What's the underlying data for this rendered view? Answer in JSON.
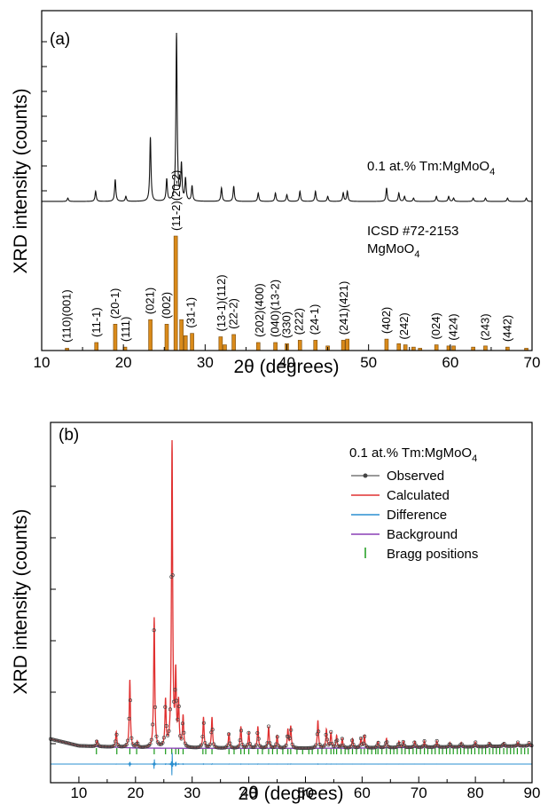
{
  "chart_data": [
    {
      "type": "bar",
      "panel": "(a)",
      "xlabel": "2θ (degrees)",
      "ylabel": "XRD intensity (counts)",
      "xlim": [
        10,
        70
      ],
      "x_ticks": [
        10,
        20,
        30,
        40,
        50,
        60,
        70
      ],
      "grid": false,
      "sample_label": "0.1 at.% Tm:MgMoO",
      "sample_label_sub": "4",
      "reference_label_line1": "ICSD #72-2153",
      "reference_label_line2": "MgMoO",
      "reference_label_sub": "4",
      "observed_peaks": [
        {
          "x": 13.2,
          "y": 2
        },
        {
          "x": 16.6,
          "y": 6
        },
        {
          "x": 19.0,
          "y": 13
        },
        {
          "x": 20.3,
          "y": 3
        },
        {
          "x": 23.3,
          "y": 38
        },
        {
          "x": 25.3,
          "y": 13
        },
        {
          "x": 26.5,
          "y": 100
        },
        {
          "x": 27.1,
          "y": 21
        },
        {
          "x": 27.6,
          "y": 13
        },
        {
          "x": 28.4,
          "y": 9
        },
        {
          "x": 32.0,
          "y": 8
        },
        {
          "x": 33.5,
          "y": 9
        },
        {
          "x": 36.5,
          "y": 5
        },
        {
          "x": 38.6,
          "y": 5
        },
        {
          "x": 40.0,
          "y": 4
        },
        {
          "x": 41.6,
          "y": 6
        },
        {
          "x": 43.5,
          "y": 6
        },
        {
          "x": 45.0,
          "y": 3
        },
        {
          "x": 46.9,
          "y": 5
        },
        {
          "x": 47.4,
          "y": 6
        },
        {
          "x": 52.2,
          "y": 8
        },
        {
          "x": 53.7,
          "y": 5
        },
        {
          "x": 54.4,
          "y": 3
        },
        {
          "x": 55.5,
          "y": 2
        },
        {
          "x": 58.3,
          "y": 3
        },
        {
          "x": 59.8,
          "y": 3
        },
        {
          "x": 60.4,
          "y": 2
        },
        {
          "x": 62.8,
          "y": 2
        },
        {
          "x": 64.3,
          "y": 2
        },
        {
          "x": 67.0,
          "y": 2
        },
        {
          "x": 69.3,
          "y": 2
        }
      ],
      "reference_bars": [
        {
          "x": 13.1,
          "y": 2
        },
        {
          "x": 16.7,
          "y": 7
        },
        {
          "x": 19.0,
          "y": 23
        },
        {
          "x": 20.2,
          "y": 3
        },
        {
          "x": 23.3,
          "y": 27
        },
        {
          "x": 25.3,
          "y": 23
        },
        {
          "x": 26.4,
          "y": 100
        },
        {
          "x": 27.1,
          "y": 27
        },
        {
          "x": 27.6,
          "y": 13
        },
        {
          "x": 28.4,
          "y": 15
        },
        {
          "x": 31.9,
          "y": 12
        },
        {
          "x": 32.4,
          "y": 5
        },
        {
          "x": 33.5,
          "y": 14
        },
        {
          "x": 36.5,
          "y": 7
        },
        {
          "x": 38.6,
          "y": 7
        },
        {
          "x": 40.0,
          "y": 6
        },
        {
          "x": 41.6,
          "y": 9
        },
        {
          "x": 43.5,
          "y": 9
        },
        {
          "x": 45.0,
          "y": 4
        },
        {
          "x": 46.9,
          "y": 9
        },
        {
          "x": 47.4,
          "y": 10
        },
        {
          "x": 52.2,
          "y": 10
        },
        {
          "x": 53.7,
          "y": 6
        },
        {
          "x": 54.5,
          "y": 5
        },
        {
          "x": 55.5,
          "y": 3
        },
        {
          "x": 56.3,
          "y": 2
        },
        {
          "x": 58.3,
          "y": 5
        },
        {
          "x": 59.8,
          "y": 4
        },
        {
          "x": 60.4,
          "y": 4
        },
        {
          "x": 62.8,
          "y": 3
        },
        {
          "x": 64.3,
          "y": 4
        },
        {
          "x": 67.0,
          "y": 3
        },
        {
          "x": 69.3,
          "y": 2
        }
      ],
      "hkl_labels": [
        {
          "x": 13.1,
          "text": "(110)(001)"
        },
        {
          "x": 16.7,
          "text": "(11-1)"
        },
        {
          "x": 19.0,
          "text": "(20-1)"
        },
        {
          "x": 20.3,
          "text": "(111)"
        },
        {
          "x": 23.3,
          "text": "(021)"
        },
        {
          "x": 25.3,
          "text": "(002)"
        },
        {
          "x": 26.5,
          "text": "(11-2)(20-2)"
        },
        {
          "x": 28.3,
          "text": "(31-1)"
        },
        {
          "x": 32.0,
          "text": "(13-1)(112)"
        },
        {
          "x": 33.5,
          "text": "(22-2)"
        },
        {
          "x": 36.7,
          "text": "(202)(400)"
        },
        {
          "x": 38.6,
          "text": "(040)(13-2)"
        },
        {
          "x": 40.0,
          "text": "(330)"
        },
        {
          "x": 41.5,
          "text": "(222)"
        },
        {
          "x": 43.4,
          "text": "(24-1)"
        },
        {
          "x": 47.0,
          "text": "(241)(421)"
        },
        {
          "x": 52.2,
          "text": "(402)"
        },
        {
          "x": 54.4,
          "text": "(242)"
        },
        {
          "x": 58.3,
          "text": "(024)"
        },
        {
          "x": 60.4,
          "text": "(424)"
        },
        {
          "x": 64.3,
          "text": "(243)"
        },
        {
          "x": 67.0,
          "text": "(442)"
        }
      ]
    },
    {
      "type": "line",
      "panel": "(b)",
      "xlabel": "2θ (degrees)",
      "ylabel": "XRD intensity (counts)",
      "xlim": [
        5,
        90
      ],
      "x_ticks": [
        10,
        20,
        30,
        40,
        50,
        60,
        70,
        80,
        90
      ],
      "grid": false,
      "legend_placement": "top-right",
      "legend_title": "0.1 at.% Tm:MgMoO",
      "legend_title_sub": "4",
      "series": [
        {
          "name": "Observed",
          "color": "#333333",
          "marker": "circle"
        },
        {
          "name": "Calculated",
          "color": "#e03030"
        },
        {
          "name": "Difference",
          "color": "#2a8fd0"
        },
        {
          "name": "Background",
          "color": "#8a3fb5"
        },
        {
          "name": "Bragg positions",
          "color": "#1a9a1a",
          "marker": "tick"
        }
      ],
      "background_points": [
        {
          "x": 5,
          "y": 5.5
        },
        {
          "x": 10,
          "y": 3.3
        },
        {
          "x": 20,
          "y": 2.6
        },
        {
          "x": 30,
          "y": 2.5
        },
        {
          "x": 40,
          "y": 2.5
        },
        {
          "x": 50,
          "y": 2.5
        },
        {
          "x": 60,
          "y": 2.6
        },
        {
          "x": 70,
          "y": 2.8
        },
        {
          "x": 80,
          "y": 3.0
        },
        {
          "x": 90,
          "y": 3.3
        }
      ],
      "peaks": [
        {
          "x": 13.2,
          "y": 2
        },
        {
          "x": 16.6,
          "y": 5
        },
        {
          "x": 19.0,
          "y": 22
        },
        {
          "x": 20.3,
          "y": 2
        },
        {
          "x": 23.3,
          "y": 42
        },
        {
          "x": 25.3,
          "y": 15
        },
        {
          "x": 26.45,
          "y": 100
        },
        {
          "x": 27.1,
          "y": 23
        },
        {
          "x": 27.6,
          "y": 14
        },
        {
          "x": 28.4,
          "y": 10
        },
        {
          "x": 32.0,
          "y": 10
        },
        {
          "x": 33.5,
          "y": 10
        },
        {
          "x": 36.5,
          "y": 5
        },
        {
          "x": 38.6,
          "y": 7
        },
        {
          "x": 40.0,
          "y": 5
        },
        {
          "x": 41.6,
          "y": 7
        },
        {
          "x": 43.5,
          "y": 7
        },
        {
          "x": 45.0,
          "y": 4
        },
        {
          "x": 46.9,
          "y": 6
        },
        {
          "x": 47.4,
          "y": 7
        },
        {
          "x": 52.2,
          "y": 9
        },
        {
          "x": 53.7,
          "y": 6
        },
        {
          "x": 54.5,
          "y": 5
        },
        {
          "x": 55.5,
          "y": 4
        },
        {
          "x": 56.5,
          "y": 3
        },
        {
          "x": 58.3,
          "y": 3
        },
        {
          "x": 59.8,
          "y": 3
        },
        {
          "x": 60.4,
          "y": 4
        },
        {
          "x": 62.8,
          "y": 2
        },
        {
          "x": 64.3,
          "y": 3
        },
        {
          "x": 66.5,
          "y": 2
        },
        {
          "x": 67.3,
          "y": 2
        },
        {
          "x": 69.3,
          "y": 2
        },
        {
          "x": 71.0,
          "y": 2
        },
        {
          "x": 73.2,
          "y": 2
        },
        {
          "x": 75.5,
          "y": 1.5
        },
        {
          "x": 77.5,
          "y": 1.5
        },
        {
          "x": 80.0,
          "y": 1.5
        },
        {
          "x": 82.5,
          "y": 1.2
        },
        {
          "x": 85.0,
          "y": 1.2
        },
        {
          "x": 87.5,
          "y": 1.2
        },
        {
          "x": 89.5,
          "y": 1
        }
      ],
      "bragg_positions": [
        13.1,
        16.7,
        19.0,
        20.2,
        23.3,
        25.3,
        26.4,
        27.1,
        27.6,
        28.4,
        31.9,
        32.4,
        33.5,
        36.5,
        37.4,
        38.6,
        39.2,
        40.0,
        41.6,
        42.4,
        43.5,
        44.2,
        45.0,
        46.0,
        46.9,
        47.4,
        48.5,
        49.5,
        50.6,
        51.2,
        52.2,
        52.9,
        53.7,
        54.5,
        55.0,
        55.5,
        56.3,
        57.0,
        57.6,
        58.3,
        59.0,
        59.8,
        60.4,
        61.0,
        61.7,
        62.4,
        62.8,
        63.5,
        64.3,
        65.0,
        65.6,
        66.2,
        67.0,
        67.6,
        68.3,
        69.0,
        69.6,
        70.3,
        71.0,
        71.6,
        72.3,
        72.9,
        73.6,
        74.2,
        74.9,
        75.5,
        76.1,
        76.8,
        77.4,
        78.0,
        78.7,
        79.3,
        79.9,
        80.6,
        81.2,
        81.8,
        82.5,
        83.1,
        83.7,
        84.3,
        85.0,
        85.6,
        86.2,
        86.8,
        87.4,
        88.1,
        88.7,
        89.3
      ]
    }
  ]
}
